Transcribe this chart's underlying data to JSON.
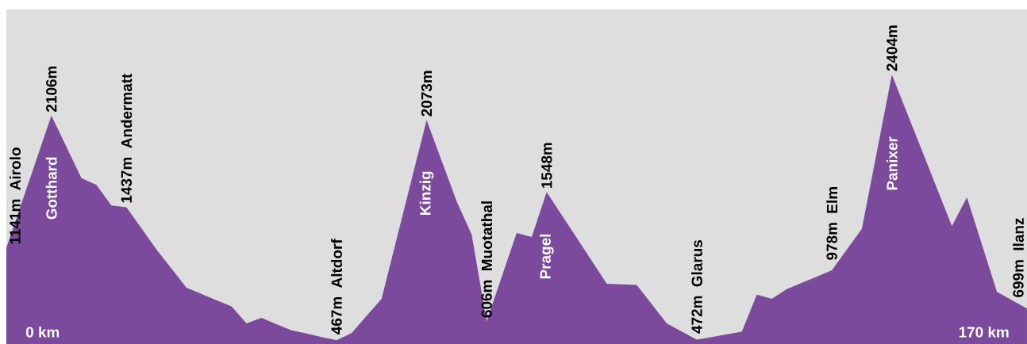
{
  "chart_data": {
    "type": "area",
    "color": "#7b4a9c",
    "ylim": [
      440,
      2880
    ],
    "categories": [
      null,
      null,
      null,
      null,
      null,
      null,
      null,
      null,
      null,
      null,
      null,
      null,
      null,
      null,
      null,
      null,
      null,
      null,
      null,
      null,
      null,
      null,
      null,
      null,
      null,
      null,
      null,
      null,
      null,
      null,
      null,
      null,
      null,
      null,
      null,
      null,
      null,
      null,
      null,
      null,
      null,
      null,
      null,
      null,
      null,
      null,
      null,
      null,
      null,
      null,
      null,
      null,
      null,
      null,
      null,
      null,
      null,
      null,
      null,
      null,
      null,
      null,
      null,
      null,
      null,
      null,
      null,
      null,
      null
    ],
    "values": [
      1141,
      1463,
      1784,
      2106,
      1878,
      1650,
      1600,
      1450,
      1437,
      1284,
      1130,
      990,
      850,
      805,
      760,
      715,
      590,
      630,
      585,
      540,
      516,
      491,
      467,
      520,
      645,
      770,
      1204,
      1639,
      2073,
      1777,
      1480,
      1240,
      606,
      928,
      1250,
      1220,
      1548,
      1381,
      1214,
      1047,
      880,
      875,
      870,
      730,
      590,
      531,
      472,
      491,
      511,
      530,
      800,
      770,
      840,
      886,
      932,
      978,
      1129,
      1280,
      1842,
      2404,
      2128,
      1852,
      1576,
      1300,
      1510,
      1165,
      820,
      760,
      699
    ],
    "value_labels": [
      "1141m",
      null,
      null,
      "2106m",
      null,
      null,
      null,
      null,
      "1437m",
      null,
      null,
      null,
      null,
      null,
      null,
      null,
      null,
      null,
      null,
      null,
      null,
      null,
      "467m",
      null,
      null,
      null,
      null,
      null,
      "2073m",
      null,
      null,
      null,
      "606m",
      null,
      null,
      null,
      "1548m",
      null,
      null,
      null,
      null,
      null,
      null,
      null,
      null,
      null,
      "472m",
      null,
      null,
      null,
      null,
      null,
      null,
      null,
      null,
      "978m",
      null,
      null,
      null,
      "2404m",
      null,
      null,
      null,
      null,
      null,
      null,
      null,
      null,
      "699m"
    ],
    "annotations": [
      "Airolo",
      "Gotthard",
      "Andermatt",
      "Altdorf",
      "Kinzig",
      "Muotathal",
      "Pragel",
      "Glarus",
      "Elm",
      "Panixer",
      "Ilanz",
      "0 km",
      "170 km"
    ]
  }
}
